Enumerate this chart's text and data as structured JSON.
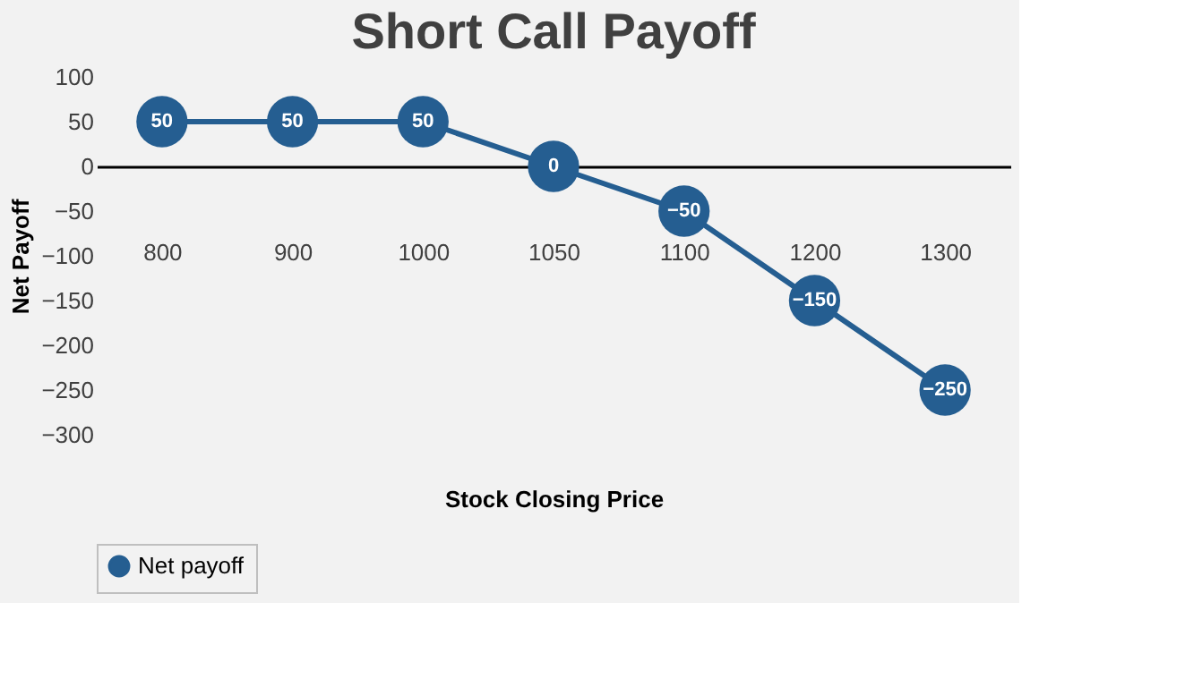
{
  "chart_data": {
    "type": "line",
    "title": "Short Call Payoff",
    "xlabel": "Stock Closing Price",
    "ylabel": "Net Payoff",
    "categories": [
      "800",
      "900",
      "1000",
      "1050",
      "1100",
      "1200",
      "1300"
    ],
    "series": [
      {
        "name": "Net payoff",
        "color": "#255e91",
        "values": [
          50,
          50,
          50,
          0,
          -50,
          -150,
          -250
        ]
      }
    ],
    "ylim": [
      -300,
      100
    ],
    "yticks": [
      -300,
      -250,
      -200,
      -150,
      -100,
      -50,
      0,
      50,
      100
    ],
    "legend": "bottom",
    "marker": "circle",
    "line_style": "solid",
    "data_labels": true
  }
}
